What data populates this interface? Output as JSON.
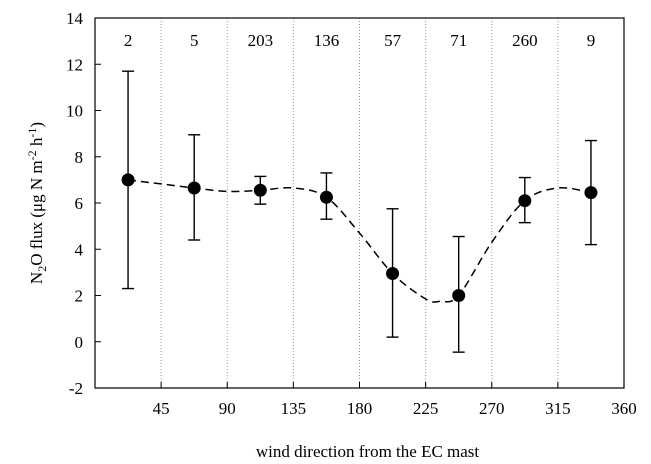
{
  "chart_data": {
    "type": "scatter",
    "title": "",
    "xlabel": "wind direction from the EC mast",
    "ylabel": {
      "prefix": "N",
      "sub": "2",
      "middle": "O flux (μg N m",
      "sup1": "-2",
      "middle2": " h",
      "sup2": "-1",
      "suffix": ")"
    },
    "xlim": [
      0,
      360
    ],
    "ylim": [
      -2,
      14
    ],
    "xticks": [
      45,
      90,
      135,
      180,
      225,
      270,
      315,
      360
    ],
    "yticks": [
      -2,
      0,
      2,
      4,
      6,
      8,
      10,
      12,
      14
    ],
    "grid": "vertical dotted at x ticks",
    "points": [
      {
        "x": 22.5,
        "y": 7.0,
        "lower": 2.3,
        "upper": 11.7,
        "n": "2"
      },
      {
        "x": 67.5,
        "y": 6.65,
        "lower": 4.4,
        "upper": 8.95,
        "n": "5"
      },
      {
        "x": 112.5,
        "y": 6.55,
        "lower": 5.95,
        "upper": 7.15,
        "n": "203"
      },
      {
        "x": 157.5,
        "y": 6.25,
        "lower": 5.3,
        "upper": 7.3,
        "n": "136"
      },
      {
        "x": 202.5,
        "y": 2.95,
        "lower": 0.2,
        "upper": 5.75,
        "n": "57"
      },
      {
        "x": 247.5,
        "y": 2.0,
        "lower": -0.45,
        "upper": 4.55,
        "n": "71"
      },
      {
        "x": 292.5,
        "y": 6.1,
        "lower": 5.15,
        "upper": 7.1,
        "n": "260"
      },
      {
        "x": 337.5,
        "y": 6.45,
        "lower": 4.2,
        "upper": 8.7,
        "n": "9"
      }
    ],
    "fit_line": {
      "style": "dashed",
      "x": [
        22.5,
        67.5,
        90,
        112.5,
        135,
        157.5,
        180,
        202.5,
        225,
        235,
        247.5,
        270,
        292.5,
        315,
        337.5
      ],
      "y": [
        7.0,
        6.65,
        6.5,
        6.55,
        6.65,
        6.25,
        4.7,
        2.95,
        1.85,
        1.75,
        2.0,
        4.3,
        6.1,
        6.65,
        6.45
      ]
    }
  }
}
